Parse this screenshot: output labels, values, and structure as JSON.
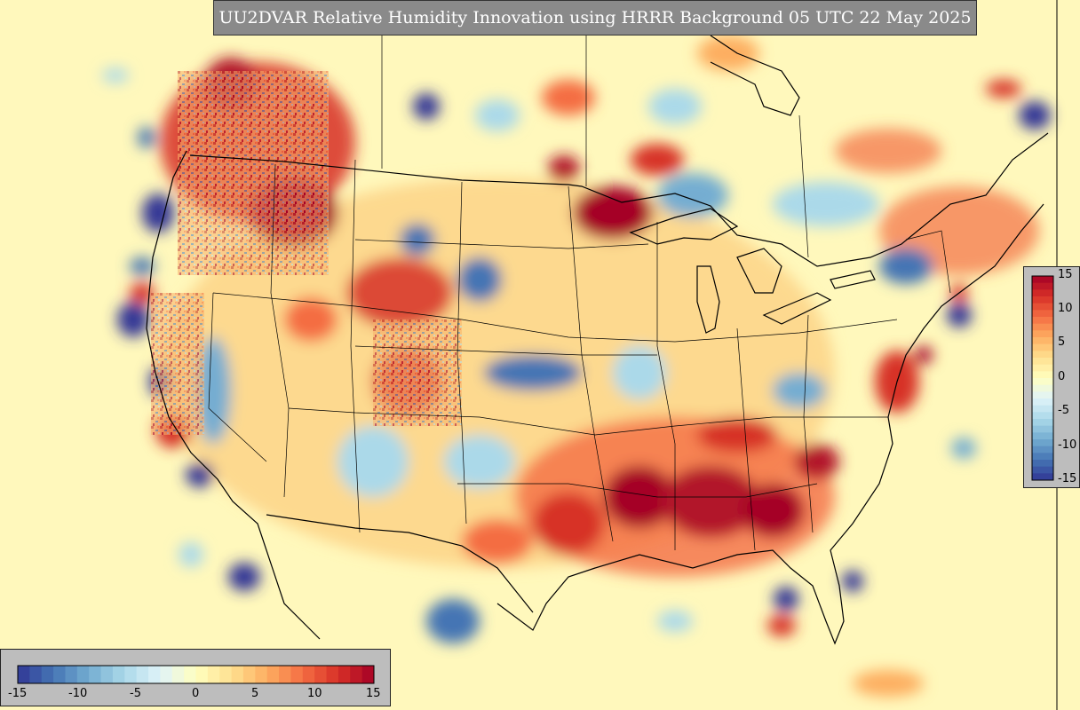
{
  "title": "UU2DVAR Relative Humidity Innovation using HRRR Background 05 UTC 22 May 2025",
  "colormap": {
    "name": "RdYlBu_r",
    "min": -15,
    "max": 15,
    "low_color": "#313695",
    "mid_color": "#ffffbf",
    "high_color": "#a50026",
    "background_color": "#fff8bc"
  },
  "colorbar_horizontal": {
    "ticks": [
      "-15",
      "-10",
      "-5",
      "0",
      "5",
      "10",
      "15"
    ]
  },
  "colorbar_vertical": {
    "ticks": [
      "15",
      "10",
      "5",
      "0",
      "-5",
      "-10",
      "-15"
    ]
  }
}
